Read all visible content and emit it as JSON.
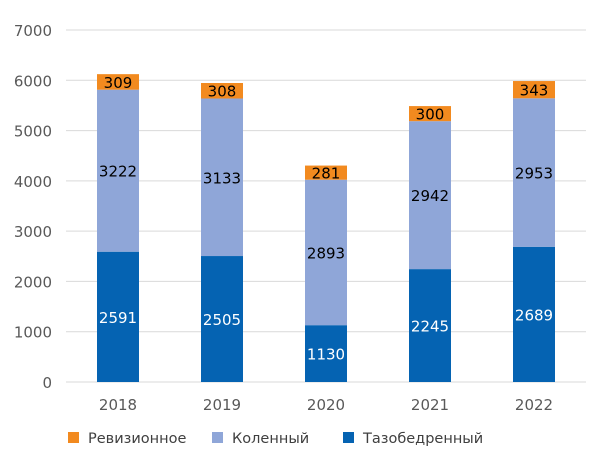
{
  "chart_data": {
    "type": "bar",
    "stacked": true,
    "categories": [
      "2018",
      "2019",
      "2020",
      "2021",
      "2022"
    ],
    "series": [
      {
        "name": "Тазобедренный",
        "values": [
          2591,
          2505,
          1130,
          2245,
          2689
        ],
        "color": "#0563B2",
        "label_color": "#FFFFFF"
      },
      {
        "name": "Коленный",
        "values": [
          3222,
          3133,
          2893,
          2942,
          2953
        ],
        "color": "#8FA6D8",
        "label_color": "#000000"
      },
      {
        "name": "Ревизионное",
        "values": [
          309,
          308,
          281,
          300,
          343
        ],
        "color": "#F28A1F",
        "label_color": "#000000"
      }
    ],
    "legend_order": [
      "Ревизионное",
      "Коленный",
      "Тазобедренный"
    ],
    "ylim": [
      0,
      7000
    ],
    "yticks": [
      0,
      1000,
      2000,
      3000,
      4000,
      5000,
      6000,
      7000
    ],
    "ytick_labels": [
      "0",
      "1000",
      "2000",
      "3000",
      "4000",
      "5000",
      "6000",
      "7000"
    ],
    "grid": true,
    "legend_position": "bottom",
    "title": "",
    "xlabel": "",
    "ylabel": ""
  },
  "colors": {
    "grid": "#D9D9D9",
    "tick_text": "#595959",
    "legend_text": "#404040"
  }
}
